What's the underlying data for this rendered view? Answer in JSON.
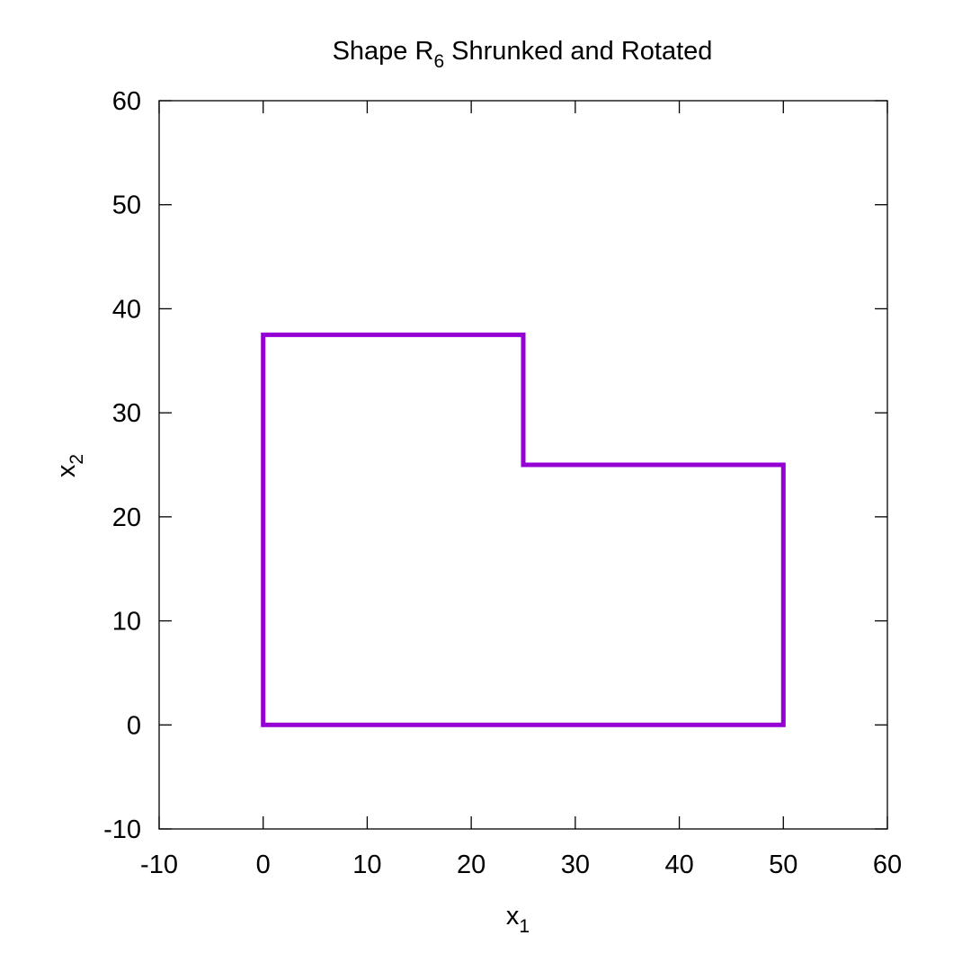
{
  "chart_data": {
    "type": "line",
    "title": {
      "prefix": "Shape R",
      "subscript": "6",
      "suffix": " Shrunked and Rotated"
    },
    "xlabel": {
      "base": "x",
      "subscript": "1"
    },
    "ylabel": {
      "base": "x",
      "subscript": "2"
    },
    "xlim": [
      -10,
      60
    ],
    "ylim": [
      -10,
      60
    ],
    "xticks": [
      -10,
      0,
      10,
      20,
      30,
      40,
      50,
      60
    ],
    "yticks": [
      -10,
      0,
      10,
      20,
      30,
      40,
      50,
      60
    ],
    "grid": false,
    "series": [
      {
        "color": "#9400d3",
        "points": [
          [
            0,
            0
          ],
          [
            50,
            0
          ],
          [
            50,
            25
          ],
          [
            25,
            25
          ],
          [
            25,
            37.5
          ],
          [
            0,
            37.5
          ],
          [
            0,
            0
          ]
        ]
      }
    ]
  }
}
